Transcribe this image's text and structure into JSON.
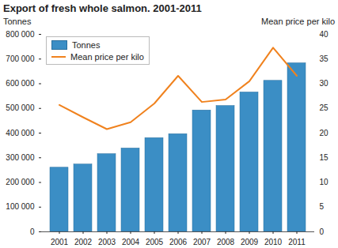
{
  "chart_data": {
    "type": "bar",
    "title": "Export of fresh whole salmon. 2001-2011",
    "categories": [
      "2001",
      "2002",
      "2003",
      "2004",
      "2005",
      "2006",
      "2007",
      "2008",
      "2009",
      "2010",
      "2011"
    ],
    "series": [
      {
        "name": "Tonnes",
        "type": "bar",
        "color": "#3b8ec5",
        "values": [
          260000,
          273000,
          315000,
          338000,
          380000,
          396000,
          492000,
          510000,
          565000,
          612000,
          683000
        ]
      },
      {
        "name": "Mean price per kilo",
        "type": "line",
        "axis": "y2",
        "color": "#f0821e",
        "values": [
          25.7,
          23.2,
          20.8,
          22.2,
          26.0,
          31.6,
          26.3,
          26.8,
          30.5,
          37.3,
          31.6
        ]
      }
    ],
    "y_label": "Tonnes",
    "y2_label": "Mean price per kilo",
    "ylim": [
      0,
      800000
    ],
    "yticks": [
      0,
      {
        "value": 100000,
        "label": "100 000"
      },
      {
        "value": 200000,
        "label": "200 000"
      },
      {
        "value": 300000,
        "label": "300 000"
      },
      {
        "value": 400000,
        "label": "400 000"
      },
      {
        "value": 500000,
        "label": "500 000"
      },
      {
        "value": 600000,
        "label": "600 000"
      },
      {
        "value": 700000,
        "label": "700 000"
      },
      {
        "value": 800000,
        "label": "800 000"
      }
    ],
    "y2lim": [
      0,
      40
    ],
    "y2ticks": [
      0,
      5,
      10,
      15,
      20,
      25,
      30,
      35,
      40
    ],
    "legend": "top-left",
    "grid": false
  }
}
